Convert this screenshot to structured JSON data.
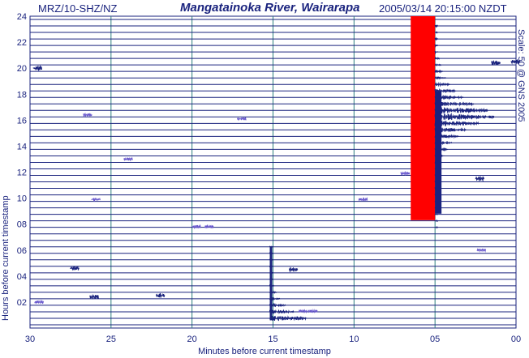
{
  "header": {
    "station": "MRZ/10-SHZ/NZ",
    "title": "Mangatainoka River, Wairarapa",
    "timestamp": "2005/03/14 20:15:00 NZDT",
    "scale_note": "Scale: 50 @ GNS 2005"
  },
  "chart_data": {
    "type": "helicorder",
    "title": "Mangatainoka River, Wairarapa",
    "xlabel": "Minutes before current timestamp",
    "ylabel": "Hours before current timestamp",
    "x_ticks": [
      "30",
      "25",
      "20",
      "15",
      "10",
      "05",
      "00"
    ],
    "y_ticks": [
      "02",
      "04",
      "06",
      "08",
      "10",
      "12",
      "14",
      "16",
      "18",
      "20",
      "22",
      "24"
    ],
    "xlim": [
      30,
      0
    ],
    "ylim": [
      0,
      24
    ],
    "trace_interval_minutes": 30,
    "trace_count": 48,
    "grid": true,
    "colors": {
      "trace": "#1a237e",
      "minor_trace": "#6a5acd",
      "clipped_signal": "#ff0000",
      "grid": "#2f7f80"
    },
    "events": [
      {
        "label": "large earthquake",
        "start_minutes_before": 6.5,
        "hours_before_start": 24,
        "hours_before_end": 8.3,
        "clipped": true,
        "coda_end_minutes_before": 0.5,
        "coda_center_hours_before": 16.4
      },
      {
        "label": "earthquake",
        "start_minutes_before": 15.2,
        "peak_hours_before": 6.3,
        "hours_before_end": 0.6,
        "coda_end_minutes_before": 11
      }
    ]
  }
}
